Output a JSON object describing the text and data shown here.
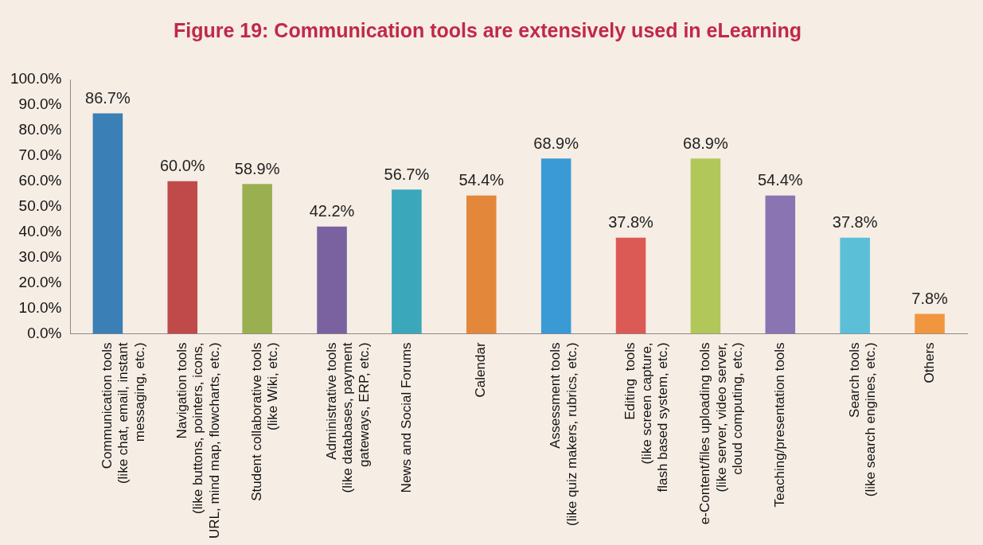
{
  "chart_data": {
    "type": "bar",
    "title": "Figure 19: Communication tools are extensively used in eLearning",
    "categories": [
      "Communication tools\n(like chat, email, instant\nmessaging, etc.)",
      "Navigation tools\n(like buttons, pointers, icons,\nURL, mind map, flowcharts, etc.)",
      "Student collaborative tools\n(like Wiki, etc.)",
      "Administrative tools\n(like databases, payment\ngateways, ERP, etc.)",
      "News and Social Forums",
      "Calendar",
      "Assessment tools\n(like quiz makers, rubrics, etc.)",
      "Editing  tools\n(like screen capture,\nflash based system, etc.)",
      "e-Content/files uploading tools\n(like server, video server,\ncloud computing, etc.)",
      "Teaching/presentation tools",
      "Search tools\n(like search engines, etc.)",
      "Others"
    ],
    "values": [
      86.7,
      60.0,
      58.9,
      42.2,
      56.7,
      54.4,
      68.9,
      37.8,
      68.9,
      54.4,
      37.8,
      7.8
    ],
    "colors": [
      "#3a7fb5",
      "#c0494a",
      "#9aaf50",
      "#7a62a0",
      "#3aa7bb",
      "#e3883a",
      "#3a9ad6",
      "#dc5a55",
      "#b1c75a",
      "#8a74b2",
      "#5bbfd8",
      "#f1963f"
    ],
    "value_labels": [
      "86.7%",
      "60.0%",
      "58.9%",
      "42.2%",
      "56.7%",
      "54.4%",
      "68.9%",
      "37.8%",
      "68.9%",
      "54.4%",
      "37.8%",
      "7.8%"
    ],
    "ylim": [
      0,
      100
    ],
    "yticks": [
      {
        "value": 0,
        "label": "0.0%"
      },
      {
        "value": 10,
        "label": "10.0%"
      },
      {
        "value": 20,
        "label": "20.0%"
      },
      {
        "value": 30,
        "label": "30.0%"
      },
      {
        "value": 40,
        "label": "40.0%"
      },
      {
        "value": 50,
        "label": "50.0%"
      },
      {
        "value": 60,
        "label": "60.0%"
      },
      {
        "value": 70,
        "label": "70.0%"
      },
      {
        "value": 80,
        "label": "80.0%"
      },
      {
        "value": 90,
        "label": "90.0%"
      },
      {
        "value": 100,
        "label": "100.0%"
      }
    ],
    "grid": false,
    "legend": false
  }
}
